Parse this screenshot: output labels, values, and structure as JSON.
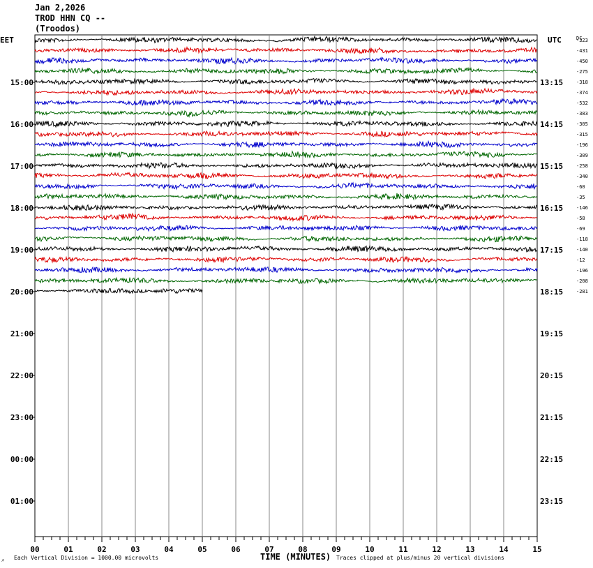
{
  "header": {
    "date": "Jan 2,2026",
    "station": "TROD HHN CQ --",
    "location": "(Troodos)"
  },
  "left_tz": "EET",
  "right_tz": "UTC",
  "dc_label": "DC",
  "footer": {
    "scale_note": "Each Vertical Division = 1000.00 microvolts",
    "xlabel": "TIME (MINUTES)",
    "clip_note": "Traces clipped at plus/minus 20 vertical divisions"
  },
  "chart_data": {
    "type": "line",
    "title": "TROD HHN CQ --",
    "xlabel": "TIME (MINUTES)",
    "x_ticks": [
      "00",
      "01",
      "02",
      "03",
      "04",
      "05",
      "06",
      "07",
      "08",
      "09",
      "10",
      "11",
      "12",
      "13",
      "14",
      "15"
    ],
    "xlim": [
      0,
      15
    ],
    "left_hour_labels": [
      "15:00",
      "16:00",
      "17:00",
      "18:00",
      "19:00",
      "20:00",
      "21:00",
      "22:00",
      "23:00",
      "00:00",
      "01:00"
    ],
    "right_hour_labels": [
      "13:15",
      "14:15",
      "15:15",
      "16:15",
      "17:15",
      "18:15",
      "19:15",
      "20:15",
      "21:15",
      "22:15",
      "23:15"
    ],
    "trace_colors": [
      "#000000",
      "#dd0000",
      "#0000cc",
      "#006600"
    ],
    "dc_offsets": [
      -323,
      -431,
      -450,
      -275,
      -318,
      -374,
      -532,
      -383,
      -305,
      -315,
      -196,
      -309,
      -258,
      -340,
      -60,
      -35,
      -146,
      -58,
      -69,
      -118,
      -140,
      -12,
      -196,
      -208,
      -281
    ],
    "last_trace_minutes": 5,
    "grid": true
  }
}
